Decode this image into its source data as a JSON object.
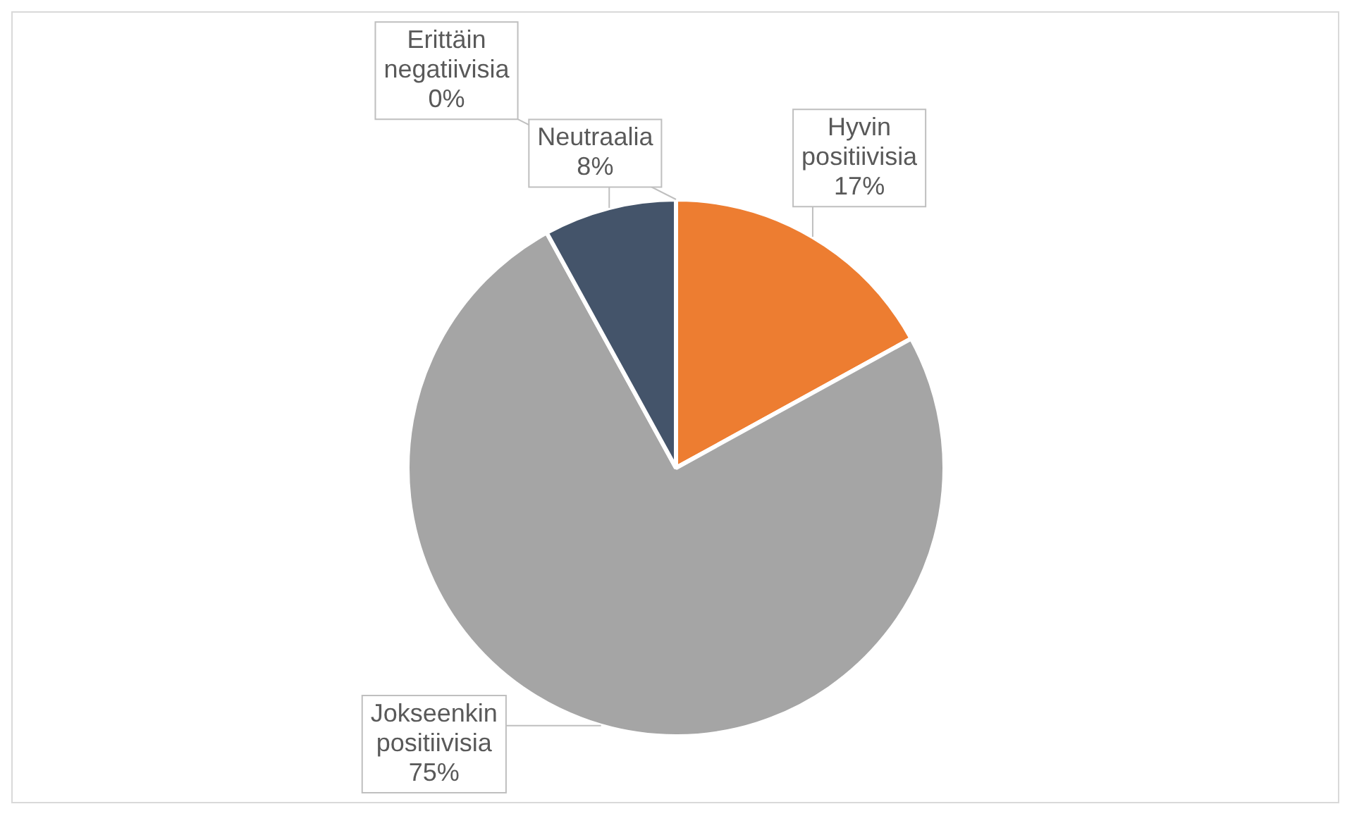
{
  "chart_data": {
    "type": "pie",
    "categories": [
      "Hyvin positiivisia",
      "Jokseenkin positiivisia",
      "Neutraalia",
      "Erittäin negatiivisia"
    ],
    "values": [
      17,
      75,
      8,
      0
    ],
    "value_labels": [
      "17%",
      "75%",
      "8%",
      "0%"
    ],
    "colors": [
      "#ed7d31",
      "#a5a5a5",
      "#44546a",
      "#4472c4"
    ],
    "legend": false
  }
}
